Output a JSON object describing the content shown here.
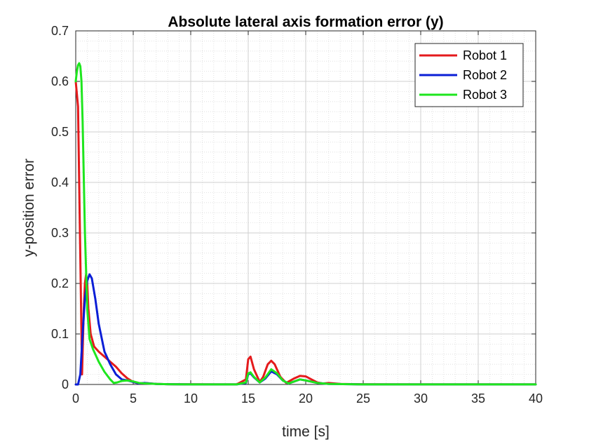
{
  "chart_data": {
    "type": "line",
    "title": "Absolute lateral axis formation error (y)",
    "xlabel": "time [s]",
    "ylabel": "y-position error",
    "xlim": [
      0,
      40
    ],
    "ylim": [
      0,
      0.7
    ],
    "xticks": [
      0,
      5,
      10,
      15,
      20,
      25,
      30,
      35,
      40
    ],
    "yticks": [
      0,
      0.1,
      0.2,
      0.3,
      0.4,
      0.5,
      0.6,
      0.7
    ],
    "xtick_labels": [
      "0",
      "5",
      "10",
      "15",
      "20",
      "25",
      "30",
      "35",
      "40"
    ],
    "ytick_labels": [
      "0",
      "0.1",
      "0.2",
      "0.3",
      "0.4",
      "0.5",
      "0.6",
      "0.7"
    ],
    "grid": true,
    "minor_grid": true,
    "legend_position": "top-right",
    "series": [
      {
        "name": "Robot 1",
        "color": "#e41a1c",
        "x": [
          0,
          0.2,
          0.4,
          0.55,
          0.7,
          0.8,
          0.9,
          1.0,
          1.1,
          1.3,
          1.6,
          2.0,
          2.5,
          3.0,
          3.5,
          4.0,
          4.5,
          5.0,
          5.5,
          6.0,
          6.5,
          7.0,
          8.0,
          10.0,
          12.0,
          14.0,
          14.8,
          15.0,
          15.2,
          15.5,
          16.0,
          16.3,
          16.7,
          17.0,
          17.3,
          17.8,
          18.3,
          19.0,
          19.5,
          20.0,
          20.5,
          21.0,
          21.5,
          22.0,
          23.0,
          25.0,
          30.0,
          35.0,
          40.0
        ],
        "y": [
          0.6,
          0.55,
          0.25,
          0.02,
          0.15,
          0.2,
          0.218,
          0.2,
          0.15,
          0.1,
          0.075,
          0.065,
          0.055,
          0.045,
          0.035,
          0.022,
          0.012,
          0.005,
          0.002,
          0.003,
          0.002,
          0.001,
          0.0005,
          0.0003,
          0.0002,
          0.0002,
          0.01,
          0.05,
          0.055,
          0.03,
          0.005,
          0.015,
          0.04,
          0.047,
          0.04,
          0.015,
          0.003,
          0.012,
          0.017,
          0.016,
          0.01,
          0.004,
          0.002,
          0.003,
          0.001,
          0.0003,
          0.0001,
          0.0001,
          0.0001
        ]
      },
      {
        "name": "Robot 2",
        "color": "#0a1ed6",
        "x": [
          0,
          0.2,
          0.4,
          0.6,
          0.8,
          1.0,
          1.2,
          1.4,
          1.7,
          2.0,
          2.5,
          3.0,
          3.5,
          4.0,
          4.5,
          5.0,
          5.5,
          6.0,
          6.5,
          7.0,
          8.0,
          10.0,
          14.0,
          14.8,
          15.0,
          15.2,
          15.5,
          16.0,
          16.5,
          17.0,
          17.5,
          18.0,
          18.5,
          19.0,
          19.5,
          20.0,
          21.0,
          22.0,
          25.0,
          30.0,
          40.0
        ],
        "y": [
          0,
          0,
          0.02,
          0.1,
          0.17,
          0.205,
          0.218,
          0.21,
          0.17,
          0.12,
          0.065,
          0.04,
          0.02,
          0.01,
          0.008,
          0.005,
          0.002,
          0.003,
          0.002,
          0.001,
          0.0005,
          0.0002,
          0.0001,
          0.003,
          0.02,
          0.022,
          0.014,
          0.004,
          0.012,
          0.026,
          0.02,
          0.008,
          0.002,
          0.006,
          0.01,
          0.008,
          0.003,
          0.001,
          0.0002,
          0.0001,
          0.0001
        ]
      },
      {
        "name": "Robot 3",
        "color": "#1ee61e",
        "x": [
          0,
          0.1,
          0.2,
          0.3,
          0.4,
          0.5,
          0.6,
          0.8,
          1.0,
          1.2,
          1.5,
          2.0,
          2.5,
          3.0,
          3.3,
          3.6,
          4.0,
          4.5,
          5.0,
          5.5,
          6.0,
          7.0,
          8.0,
          10.0,
          14.0,
          14.8,
          15.0,
          15.2,
          15.5,
          16.0,
          16.5,
          17.0,
          17.5,
          18.0,
          18.5,
          19.0,
          19.5,
          20.0,
          21.0,
          22.0,
          25.0,
          30.0,
          40.0
        ],
        "y": [
          0.6,
          0.62,
          0.632,
          0.636,
          0.63,
          0.6,
          0.52,
          0.3,
          0.15,
          0.09,
          0.07,
          0.045,
          0.025,
          0.01,
          0.003,
          0.004,
          0.007,
          0.008,
          0.006,
          0.003,
          0.002,
          0.001,
          0.0005,
          0.0002,
          0.0001,
          0.004,
          0.022,
          0.024,
          0.015,
          0.004,
          0.014,
          0.03,
          0.022,
          0.008,
          0.002,
          0.006,
          0.01,
          0.008,
          0.003,
          0.001,
          0.0002,
          0.0001,
          0.0001
        ]
      }
    ]
  }
}
